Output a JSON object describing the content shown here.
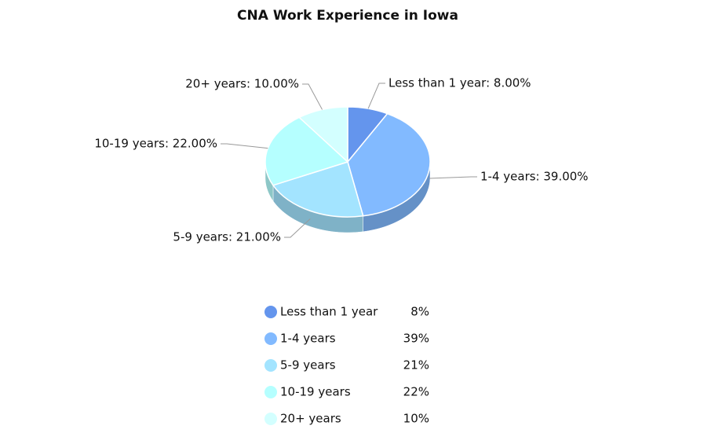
{
  "chart_data": {
    "type": "pie",
    "title": "CNA Work Experience in Iowa",
    "categories": [
      "Less than 1 year",
      "1-4 years",
      "5-9 years",
      "10-19 years",
      "20+ years"
    ],
    "values": [
      8,
      39,
      21,
      22,
      10
    ],
    "value_labels": [
      "Less than 1 year: 8.00%",
      "1-4 years: 39.00%",
      "5-9 years: 21.00%",
      "10-19 years: 22.00%",
      "20+ years: 10.00%"
    ],
    "legend_value_labels": [
      "8%",
      "39%",
      "21%",
      "22%",
      "10%"
    ],
    "colors": [
      "#6495ED",
      "#82BAFF",
      "#A3E4FF",
      "#B5FFFF",
      "#D3FFFF"
    ],
    "legend": "bottom"
  }
}
